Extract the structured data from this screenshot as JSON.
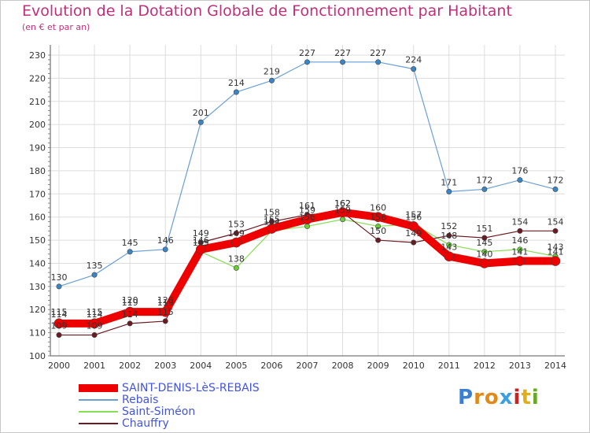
{
  "header": {
    "title": "Evolution de la Dotation Globale de Fonctionnement par Habitant",
    "subtitle": "(en € et par an)"
  },
  "chart_data": {
    "type": "line",
    "title": "Evolution de la Dotation Globale de Fonctionnement par Habitant",
    "subtitle": "(en € et par an)",
    "xlabel": "",
    "ylabel": "",
    "categories": [
      "2000",
      "2001",
      "2002",
      "2003",
      "2004",
      "2005",
      "2006",
      "2007",
      "2008",
      "2009",
      "2010",
      "2011",
      "2012",
      "2013",
      "2014"
    ],
    "ylim": [
      100,
      230
    ],
    "yticks": [
      100,
      110,
      120,
      130,
      140,
      150,
      160,
      170,
      180,
      190,
      200,
      210,
      220,
      230
    ],
    "grid": true,
    "legend_position": "bottom",
    "series": [
      {
        "name": "Rebais",
        "color": "#6a9fd4",
        "marker": "#3a85c8",
        "width": 1.2,
        "labels": true,
        "values": [
          130,
          135,
          145,
          146,
          201,
          214,
          219,
          227,
          227,
          227,
          224,
          171,
          172,
          176,
          172
        ]
      },
      {
        "name": "Saint-Siméon",
        "color": "#88dd55",
        "marker": "#6ccc3a",
        "width": 1.2,
        "labels": true,
        "values": [
          115,
          115,
          120,
          120,
          145,
          138,
          154,
          156,
          159,
          156,
          157,
          148,
          145,
          146,
          143
        ]
      },
      {
        "name": "Chauffry",
        "color": "#6a1a22",
        "marker": "#6a1a22",
        "width": 1.2,
        "labels": true,
        "values": [
          109,
          109,
          114,
          115,
          149,
          153,
          158,
          161,
          162,
          150,
          149,
          152,
          151,
          154,
          154
        ]
      },
      {
        "name": "SAINT-DENIS-LèS-REBAIS",
        "color": "#ee0000",
        "marker": "#ee0000",
        "width": 10,
        "labels": true,
        "values": [
          114,
          114,
          119,
          119,
          146,
          149,
          155,
          159,
          162,
          160,
          156,
          143,
          140,
          141,
          141
        ]
      }
    ]
  },
  "legend": {
    "items": [
      {
        "label": "SAINT-DENIS-LèS-REBAIS",
        "color": "#ee0000",
        "thickness": 10
      },
      {
        "label": "Rebais",
        "color": "#6a9fd4",
        "thickness": 2
      },
      {
        "label": "Saint-Siméon",
        "color": "#88dd55",
        "thickness": 2
      },
      {
        "label": "Chauffry",
        "color": "#6a1a22",
        "thickness": 2
      }
    ]
  },
  "logo": {
    "letters": [
      "P",
      "r",
      "o",
      "x",
      "i",
      "t",
      "i"
    ],
    "colors": [
      "#3a7fd0",
      "#e08a1a",
      "#e08a1a",
      "#3aa0e0",
      "#cc2222",
      "#e0b01a",
      "#66aa22"
    ]
  }
}
